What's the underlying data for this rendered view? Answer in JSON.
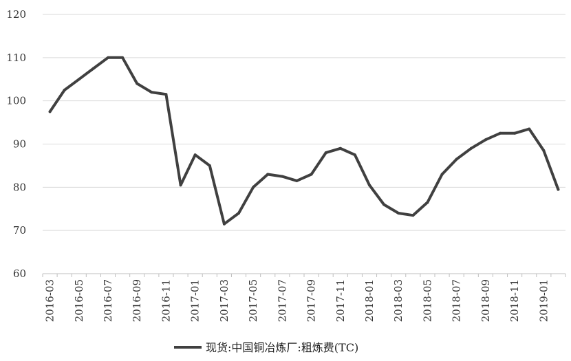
{
  "chart_data": {
    "type": "line",
    "title": "",
    "xlabel": "",
    "ylabel": "",
    "ylim": [
      60,
      120
    ],
    "yticks": [
      60,
      70,
      80,
      90,
      100,
      110,
      120
    ],
    "grid": true,
    "legend_position": "bottom",
    "x": [
      "2016-03",
      "2016-04",
      "2016-05",
      "2016-06",
      "2016-07",
      "2016-08",
      "2016-09",
      "2016-10",
      "2016-11",
      "2016-12",
      "2017-01",
      "2017-02",
      "2017-03",
      "2017-04",
      "2017-05",
      "2017-06",
      "2017-07",
      "2017-08",
      "2017-09",
      "2017-10",
      "2017-11",
      "2017-12",
      "2018-01",
      "2018-02",
      "2018-03",
      "2018-04",
      "2018-05",
      "2018-06",
      "2018-07",
      "2018-08",
      "2018-09",
      "2018-10",
      "2018-11",
      "2018-12",
      "2019-01",
      "2019-02"
    ],
    "xtick_labels": [
      "2016-03",
      "2016-05",
      "2016-07",
      "2016-09",
      "2016-11",
      "2017-01",
      "2017-03",
      "2017-05",
      "2017-07",
      "2017-09",
      "2017-11",
      "2018-01",
      "2018-03",
      "2018-05",
      "2018-07",
      "2018-09",
      "2018-11",
      "2019-01"
    ],
    "series": [
      {
        "name": "现货:中国铜冶炼厂:粗炼费(TC)",
        "color": "#404040",
        "values": [
          97.5,
          102.5,
          105,
          107.5,
          110,
          110,
          104,
          102,
          101.5,
          80.5,
          87.5,
          85,
          71.5,
          74,
          80,
          83,
          82.5,
          81.5,
          83,
          88,
          89,
          87.5,
          80.5,
          76,
          74,
          73.5,
          76.5,
          83,
          86.5,
          89,
          91,
          92.5,
          92.5,
          93.5,
          88.5,
          79.5
        ]
      }
    ]
  }
}
